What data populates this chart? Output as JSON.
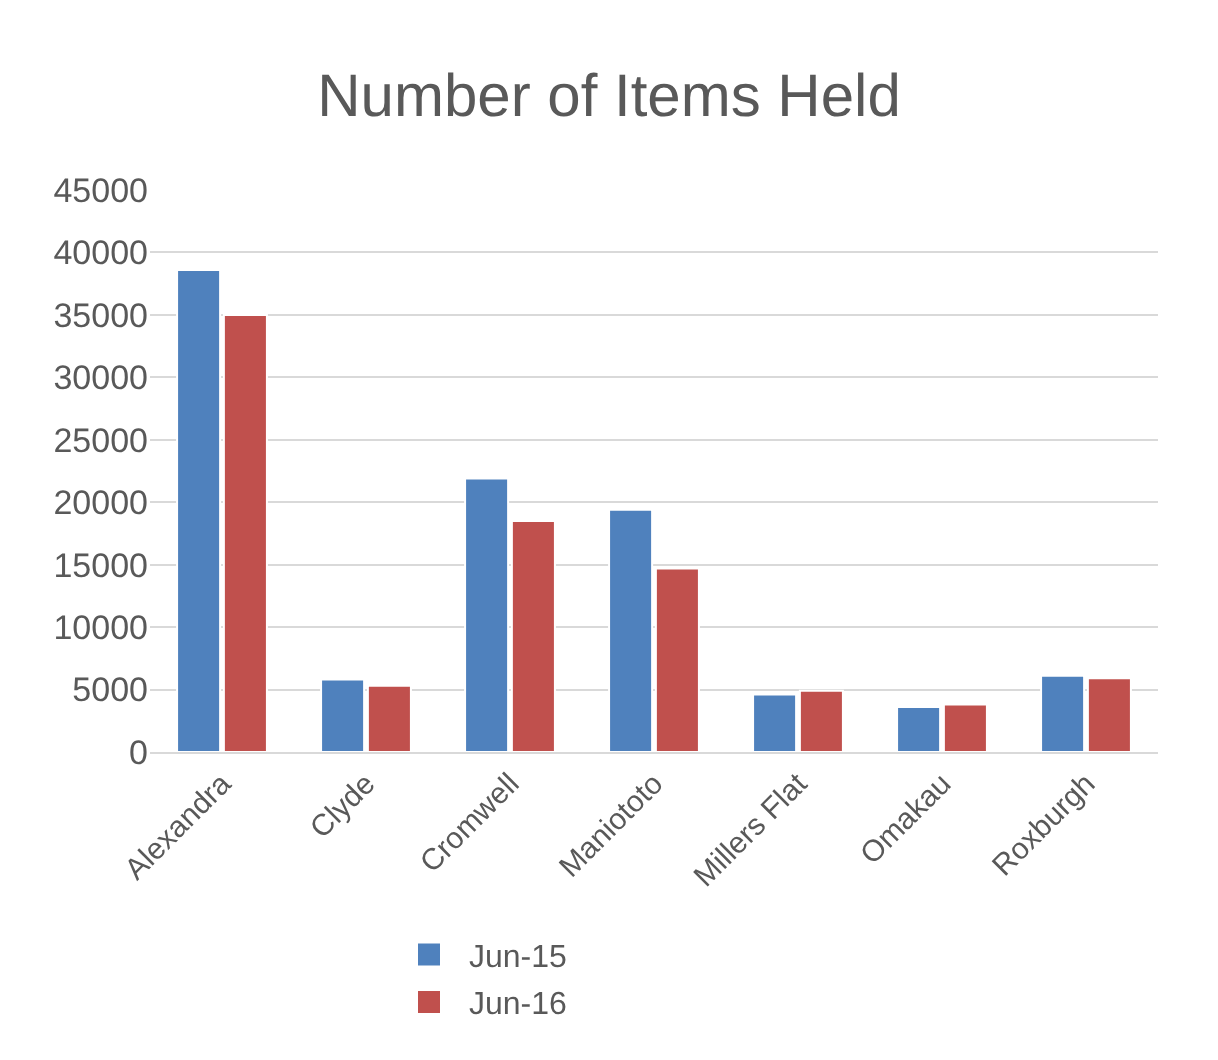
{
  "chart_data": {
    "type": "bar",
    "title": "Number of Items Held",
    "categories": [
      "Alexandra",
      "Clyde",
      "Cromwell",
      "Maniototo",
      "Millers Flat",
      "Omakau",
      "Roxburgh"
    ],
    "series": [
      {
        "name": "Jun-15",
        "color": "#4f81bd",
        "values": [
          38600,
          5800,
          21900,
          19400,
          4600,
          3600,
          6100
        ]
      },
      {
        "name": "Jun-16",
        "color": "#c0504d",
        "values": [
          35000,
          5300,
          18500,
          14700,
          4900,
          3800,
          5900
        ]
      }
    ],
    "ylim": [
      0,
      45000
    ],
    "yticks": [
      0,
      5000,
      10000,
      15000,
      20000,
      25000,
      30000,
      35000,
      40000,
      45000
    ],
    "grid": "y",
    "legend": "bottom"
  }
}
